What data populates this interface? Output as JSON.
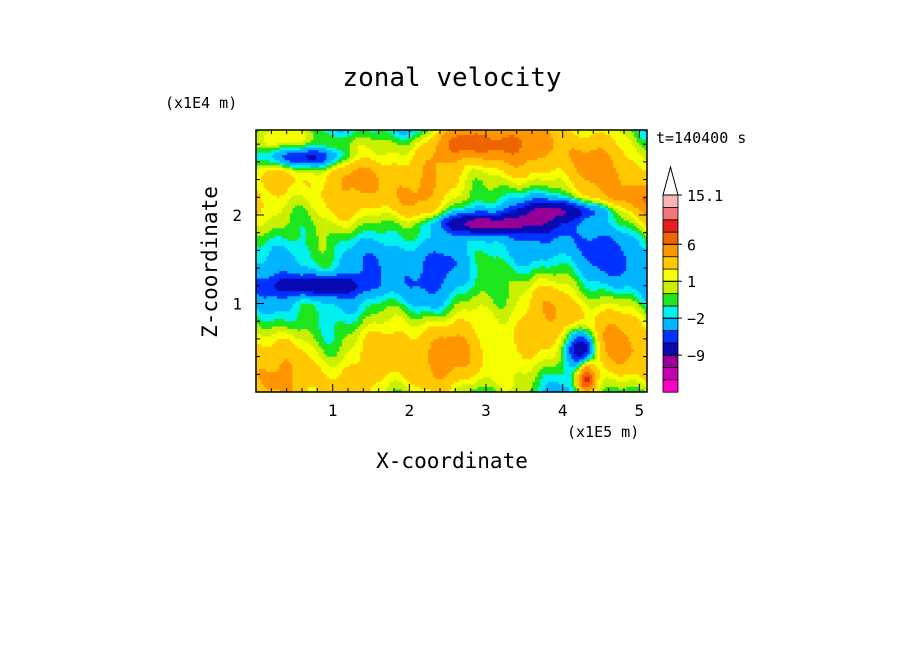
{
  "chart_data": {
    "type": "heatmap",
    "title": "zonal velocity",
    "time_label": "t=140400 s",
    "xlabel": "X-coordinate",
    "ylabel": "Z-coordinate",
    "x_units": "(x1E5 m)",
    "y_units": "(x1E4 m)",
    "xlim": [
      0,
      5.1
    ],
    "ylim": [
      0,
      2.96
    ],
    "x_ticks": [
      {
        "value": 1,
        "label": "1"
      },
      {
        "value": 2,
        "label": "2"
      },
      {
        "value": 3,
        "label": "3"
      },
      {
        "value": 4,
        "label": "4"
      },
      {
        "value": 5,
        "label": "5"
      }
    ],
    "y_ticks": [
      {
        "value": 1,
        "label": "1"
      },
      {
        "value": 2,
        "label": "2"
      }
    ],
    "colorbar": {
      "levels": [
        -15,
        -12,
        -9,
        -6,
        -4,
        -2,
        -1,
        0,
        1,
        2,
        4,
        6,
        8,
        10,
        12,
        15.1
      ],
      "colors": [
        "#ff00c8",
        "#c800b4",
        "#960096",
        "#0a0ab4",
        "#0032ff",
        "#00b4ff",
        "#00f0f0",
        "#1ee61e",
        "#c8f000",
        "#f5ff00",
        "#ffc800",
        "#ff9600",
        "#f06400",
        "#e61e1e",
        "#f07878",
        "#fab4b4",
        "#ffffff"
      ],
      "labels": [
        {
          "value": -9,
          "label": "−9"
        },
        {
          "value": -2,
          "label": "−2"
        },
        {
          "value": 1,
          "label": "1"
        },
        {
          "value": 6,
          "label": "6"
        },
        {
          "value": 15.1,
          "label": "15.1"
        }
      ],
      "extend": "max"
    }
  }
}
